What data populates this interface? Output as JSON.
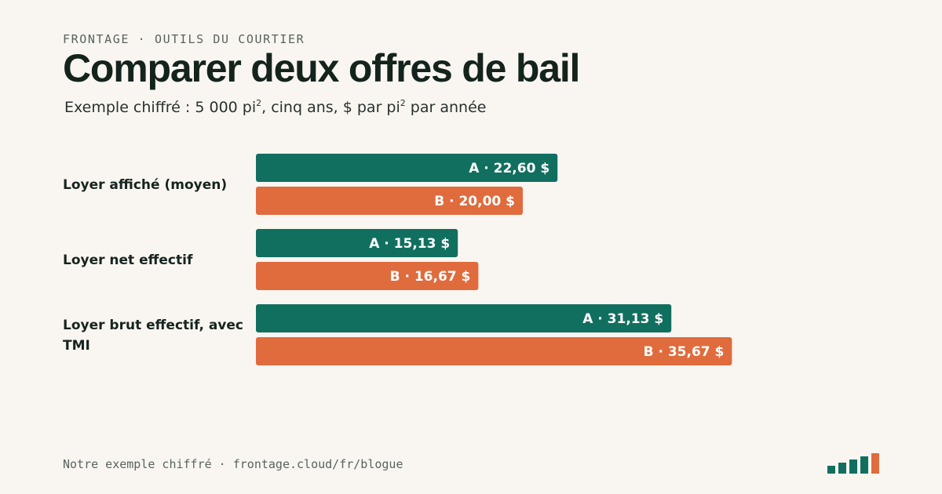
{
  "header": {
    "eyebrow": "FRONTAGE · OUTILS DU COURTIER",
    "title": "Comparer deux offres de bail",
    "subtitle": {
      "part1": "Exemple chiffré : 5 000 pi",
      "sup1": "2",
      "part2": ", cinq ans, $ par pi",
      "sup2": "2",
      "part3": " par année"
    }
  },
  "chart_data": {
    "type": "bar",
    "orientation": "horizontal",
    "categories": [
      "Loyer affiché (moyen)",
      "Loyer net effectif",
      "Loyer brut effectif, avec TMI"
    ],
    "series": [
      {
        "name": "A",
        "values": [
          22.6,
          15.13,
          31.13
        ],
        "labels": [
          "A · 22,60 $",
          "A · 15,13 $",
          "A · 31,13 $"
        ],
        "color": "#116f5f"
      },
      {
        "name": "B",
        "values": [
          20.0,
          16.67,
          35.67
        ],
        "labels": [
          "B · 20,00 $",
          "B · 16,67 $",
          "B · 35,67 $"
        ],
        "color": "#e06b3d"
      }
    ],
    "grid": false
  },
  "footer": {
    "text": "Notre exemple chiffré · frontage.cloud/fr/blogue"
  },
  "colors": {
    "background": "#f9f6f1",
    "series_a": "#116f5f",
    "series_b": "#e06b3d"
  },
  "logo": {
    "icon": "bar-logo-icon"
  }
}
